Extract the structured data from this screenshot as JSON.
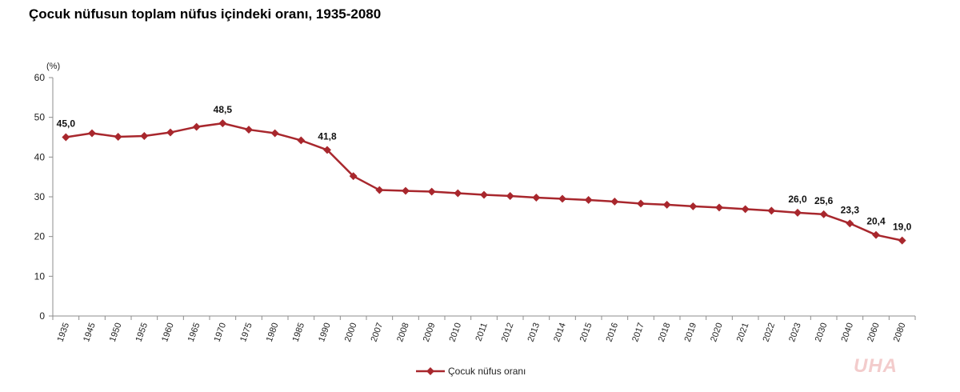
{
  "colors": {
    "series": "#a8272d",
    "axis": "#8c8c8c",
    "watermark": "#f3cccc"
  },
  "chart_data": {
    "type": "line",
    "title": "Çocuk nüfusun toplam nüfus içindeki oranı, 1935-2080",
    "unit_label": "(%)",
    "ylim": [
      0,
      60
    ],
    "yticks": [
      "0",
      "10",
      "20",
      "30",
      "40",
      "50",
      "60"
    ],
    "grid": false,
    "legend_position": "bottom-center",
    "categories": [
      "1935",
      "1945",
      "1950",
      "1955",
      "1960",
      "1965",
      "1970",
      "1975",
      "1980",
      "1985",
      "1990",
      "2000",
      "2007",
      "2008",
      "2009",
      "2010",
      "2011",
      "2012",
      "2013",
      "2014",
      "2015",
      "2016",
      "2017",
      "2018",
      "2019",
      "2020",
      "2021",
      "2022",
      "2023",
      "2030",
      "2040",
      "2060",
      "2080"
    ],
    "series": [
      {
        "name": "Çocuk nüfus oranı",
        "values": [
          45.0,
          46.0,
          45.1,
          45.3,
          46.2,
          47.6,
          48.5,
          46.9,
          46.0,
          44.2,
          41.8,
          35.2,
          31.7,
          31.5,
          31.3,
          30.9,
          30.5,
          30.2,
          29.8,
          29.5,
          29.2,
          28.8,
          28.3,
          28.0,
          27.6,
          27.3,
          26.9,
          26.5,
          26.0,
          25.6,
          23.3,
          20.4,
          19.0
        ]
      }
    ],
    "data_labels": [
      {
        "index": 0,
        "text": "45,0"
      },
      {
        "index": 6,
        "text": "48,5"
      },
      {
        "index": 10,
        "text": "41,8"
      },
      {
        "index": 28,
        "text": "26,0"
      },
      {
        "index": 29,
        "text": "25,6"
      },
      {
        "index": 30,
        "text": "23,3"
      },
      {
        "index": 31,
        "text": "20,4"
      },
      {
        "index": 32,
        "text": "19,0"
      }
    ]
  },
  "watermark": "UHA"
}
